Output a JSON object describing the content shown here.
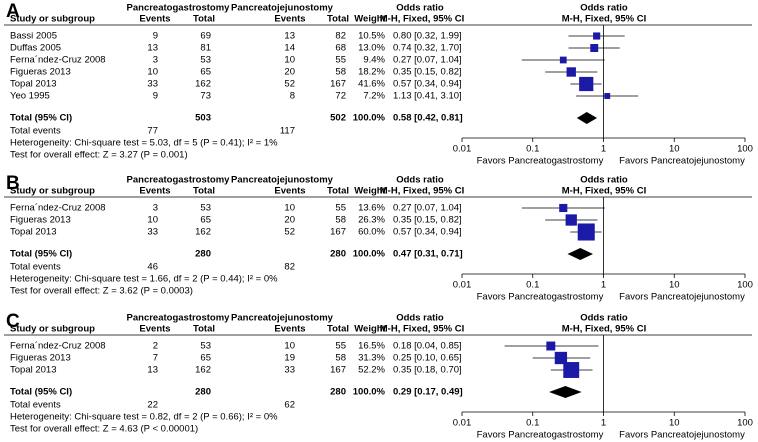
{
  "chart_data": [
    {
      "type": "forest",
      "panel_label": "A",
      "headers": {
        "study": "Study or subgroup",
        "group1": "Pancreatogastrostomy",
        "group2": "Pancreatojejunostomy",
        "events1": "Events",
        "total1": "Total",
        "events2": "Events",
        "total2": "Total",
        "weight": "Weight",
        "or_col": "Odds ratio",
        "method": "M-H, Fixed, 95% CI",
        "or_plot": "Odds ratio",
        "method_plot": "M-H, Fixed, 95% CI"
      },
      "categories": [
        "Bassi 2005",
        "Duffas 2005",
        "Ferna´ndez-Cruz 2008",
        "Figueras 2013",
        "Topal 2013",
        "Yeo 1995"
      ],
      "events1": [
        9,
        13,
        3,
        10,
        33,
        9
      ],
      "total1": [
        69,
        81,
        53,
        65,
        162,
        73
      ],
      "events2": [
        13,
        14,
        10,
        20,
        52,
        8
      ],
      "total2": [
        82,
        68,
        55,
        58,
        167,
        72
      ],
      "weights": [
        10.5,
        13.0,
        9.4,
        18.2,
        41.6,
        7.2
      ],
      "weight_labels": [
        "10.5%",
        "13.0%",
        "9.4%",
        "18.2%",
        "41.6%",
        "7.2%"
      ],
      "values": [
        0.8,
        0.74,
        0.27,
        0.35,
        0.57,
        1.13
      ],
      "ci_low": [
        0.32,
        0.32,
        0.07,
        0.15,
        0.34,
        0.41
      ],
      "ci_high": [
        1.99,
        1.7,
        1.04,
        0.82,
        0.94,
        3.1
      ],
      "value_labels": [
        "0.80 [0.32, 1.99]",
        "0.74 [0.32, 1.70]",
        "0.27 [0.07, 1.04]",
        "0.35 [0.15, 0.82]",
        "0.57 [0.34, 0.94]",
        "1.13 [0.41, 3.10]"
      ],
      "total": {
        "label": "Total (95% CI)",
        "total1": 503,
        "total2": 502,
        "weight": 100,
        "weight_label": "100.0%",
        "value": 0.58,
        "ci_low": 0.42,
        "ci_high": 0.81,
        "value_label": "0.58 [0.42, 0.81]"
      },
      "total_events": {
        "label": "Total events",
        "events1": 77,
        "events2": 117
      },
      "heterogeneity": "Heterogeneity: Chi-square test = 5.03, df = 5 (P = 0.41); I² = 1%",
      "overall_effect": "Test for overall effect: Z = 3.27 (P = 0.001)",
      "xlim": [
        0.01,
        100
      ],
      "xticks": [
        0.01,
        0.1,
        1,
        10,
        100
      ],
      "log_x": true,
      "favors_left": "Favors Pancreatogastrostomy",
      "favors_right": "Favors Pancreatojejunostomy",
      "color": "#1a1aa6"
    },
    {
      "type": "forest",
      "panel_label": "B",
      "headers": {
        "study": "Study or subgroup",
        "group1": "Pancreatogastrostomy",
        "group2": "Pancreatojejunostomy",
        "events1": "Events",
        "total1": "Total",
        "events2": "Events",
        "total2": "Total",
        "weight": "Weight",
        "or_col": "Odds ratio",
        "method": "M-H, Fixed, 95% CI",
        "or_plot": "Odds ratio",
        "method_plot": "M-H, Fixed, 95% CI"
      },
      "categories": [
        "Ferna´ndez-Cruz 2008",
        "Figueras 2013",
        "Topal 2013"
      ],
      "events1": [
        3,
        10,
        33
      ],
      "total1": [
        53,
        65,
        162
      ],
      "events2": [
        10,
        20,
        52
      ],
      "total2": [
        55,
        58,
        167
      ],
      "weights": [
        13.6,
        26.3,
        60.0
      ],
      "weight_labels": [
        "13.6%",
        "26.3%",
        "60.0%"
      ],
      "values": [
        0.27,
        0.35,
        0.57
      ],
      "ci_low": [
        0.07,
        0.15,
        0.34
      ],
      "ci_high": [
        1.04,
        0.82,
        0.94
      ],
      "value_labels": [
        "0.27 [0.07, 1.04]",
        "0.35 [0.15, 0.82]",
        "0.57 [0.34, 0.94]"
      ],
      "total": {
        "label": "Total (95% CI)",
        "total1": 280,
        "total2": 280,
        "weight": 100,
        "weight_label": "100.0%",
        "value": 0.47,
        "ci_low": 0.31,
        "ci_high": 0.71,
        "value_label": "0.47 [0.31, 0.71]"
      },
      "total_events": {
        "label": "Total events",
        "events1": 46,
        "events2": 82
      },
      "heterogeneity": "Heterogeneity: Chi-square test = 1.66, df = 2 (P = 0.44); I² = 0%",
      "overall_effect": "Test for overall effect: Z = 3.62 (P = 0.0003)",
      "xlim": [
        0.01,
        100
      ],
      "xticks": [
        0.01,
        0.1,
        1,
        10,
        100
      ],
      "log_x": true,
      "favors_left": "Favors Pancreatogastrostomy",
      "favors_right": "Favors Pancreatojejunostomy",
      "color": "#1a1aa6"
    },
    {
      "type": "forest",
      "panel_label": "C",
      "headers": {
        "study": "Study or subgroup",
        "group1": "Pancreatogastrostomy",
        "group2": "Pancreatojejunostomy",
        "events1": "Events",
        "total1": "Total",
        "events2": "Events",
        "total2": "Total",
        "weight": "Weight",
        "or_col": "Odds ratio",
        "method": "M-H, Fixed, 95% CI",
        "or_plot": "Odds ratio",
        "method_plot": "M-H, Fixed, 95% CI"
      },
      "categories": [
        "Ferna´ndez-Cruz 2008",
        "Figueras 2013",
        "Topal 2013"
      ],
      "events1": [
        2,
        7,
        13
      ],
      "total1": [
        53,
        65,
        162
      ],
      "events2": [
        10,
        19,
        33
      ],
      "total2": [
        55,
        58,
        167
      ],
      "weights": [
        16.5,
        31.3,
        52.2
      ],
      "weight_labels": [
        "16.5%",
        "31.3%",
        "52.2%"
      ],
      "values": [
        0.18,
        0.25,
        0.35
      ],
      "ci_low": [
        0.04,
        0.1,
        0.18
      ],
      "ci_high": [
        0.85,
        0.65,
        0.7
      ],
      "value_labels": [
        "0.18 [0.04, 0.85]",
        "0.25 [0.10, 0.65]",
        "0.35 [0.18, 0.70]"
      ],
      "total": {
        "label": "Total (95% CI)",
        "total1": 280,
        "total2": 280,
        "weight": 100,
        "weight_label": "100.0%",
        "value": 0.29,
        "ci_low": 0.17,
        "ci_high": 0.49,
        "value_label": "0.29 [0.17, 0.49]"
      },
      "total_events": {
        "label": "Total events",
        "events1": 22,
        "events2": 62
      },
      "heterogeneity": "Heterogeneity: Chi-square test = 0.82, df = 2 (P = 0.66); I² = 0%",
      "overall_effect": "Test for overall effect: Z = 4.63 (P < 0.00001)",
      "xlim": [
        0.01,
        100
      ],
      "xticks": [
        0.01,
        0.1,
        1,
        10,
        100
      ],
      "log_x": true,
      "favors_left": "Favors Pancreatogastrostomy",
      "favors_right": "Favors Pancreatojejunostomy",
      "color": "#1a1aa6"
    }
  ]
}
